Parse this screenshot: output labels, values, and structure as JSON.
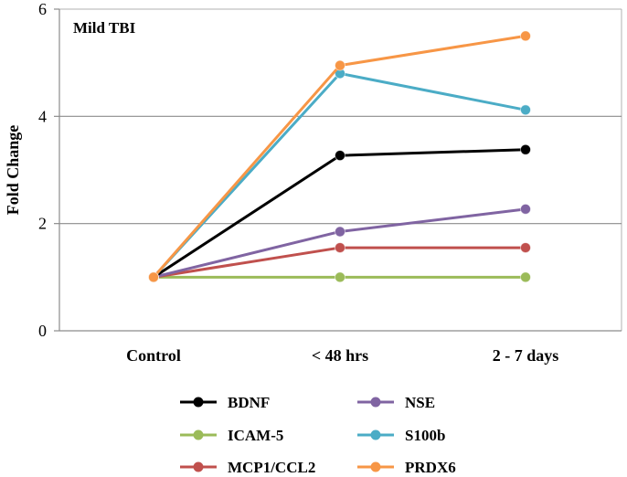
{
  "chart_data": {
    "type": "line",
    "title": "Mild TBI",
    "ylabel": "Fold Change",
    "xlabel": "",
    "categories": [
      "Control",
      "< 48 hrs",
      "2 - 7 days"
    ],
    "ylim": [
      0,
      6
    ],
    "yticks": [
      0,
      2,
      4,
      6
    ],
    "gridlines": [
      2,
      4
    ],
    "series": [
      {
        "name": "ICAM-5",
        "color": "#9bbb59",
        "values": [
          1.0,
          1.0,
          1.0
        ]
      },
      {
        "name": "MCP1/CCL2",
        "color": "#c0504d",
        "values": [
          1.0,
          1.55,
          1.55
        ]
      },
      {
        "name": "NSE",
        "color": "#8064a2",
        "values": [
          1.0,
          1.85,
          2.27
        ]
      },
      {
        "name": "BDNF",
        "color": "#000000",
        "values": [
          1.0,
          3.27,
          3.38
        ]
      },
      {
        "name": "S100b",
        "color": "#4bacc6",
        "values": [
          1.0,
          4.8,
          4.12
        ]
      },
      {
        "name": "PRDX6",
        "color": "#f79646",
        "values": [
          1.0,
          4.95,
          5.5
        ]
      }
    ],
    "legend_order": [
      "BDNF",
      "NSE",
      "ICAM-5",
      "S100b",
      "MCP1/CCL2",
      "PRDX6"
    ],
    "legend_position": "bottom"
  }
}
